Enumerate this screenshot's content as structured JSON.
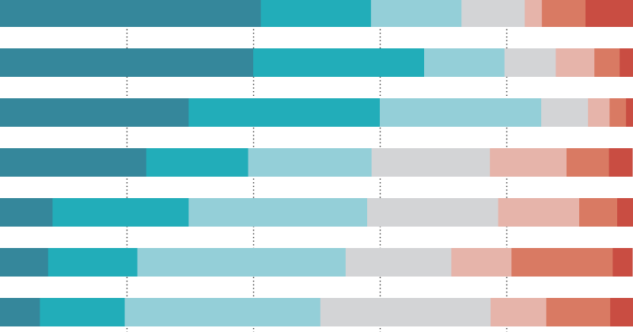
{
  "chart_data": {
    "type": "bar",
    "orientation": "horizontal",
    "stacked": "100%",
    "title": "",
    "xlabel": "",
    "ylabel": "",
    "xlim": [
      0,
      100
    ],
    "grid": {
      "x": true,
      "y": false,
      "style": "dotted",
      "ticks": [
        20,
        40,
        60,
        80
      ]
    },
    "legend": "none",
    "colors": [
      "#35879b",
      "#22adb9",
      "#94cfd8",
      "#d3d4d6",
      "#e6b4aa",
      "#d97a63",
      "#c94d42"
    ],
    "series": [
      {
        "name": "",
        "values": [
          41.2,
          40.0,
          29.8,
          23.1,
          8.3,
          7.6,
          6.3
        ]
      },
      {
        "name": "",
        "values": [
          17.4,
          27.0,
          30.2,
          16.1,
          21.5,
          14.1,
          13.4
        ]
      },
      {
        "name": "",
        "values": [
          14.3,
          12.7,
          25.5,
          19.5,
          28.2,
          32.9,
          30.9
        ]
      },
      {
        "name": "",
        "values": [
          10.0,
          8.1,
          7.4,
          18.7,
          20.7,
          16.7,
          26.9
        ]
      },
      {
        "name": "",
        "values": [
          2.7,
          6.1,
          3.4,
          12.1,
          12.8,
          9.5,
          8.8
        ]
      },
      {
        "name": "",
        "values": [
          6.9,
          4.0,
          2.6,
          6.7,
          6.0,
          16.0,
          10.1
        ]
      },
      {
        "name": "",
        "values": [
          7.5,
          3.1,
          1.1,
          3.7,
          2.5,
          3.1,
          3.6
        ]
      }
    ]
  }
}
